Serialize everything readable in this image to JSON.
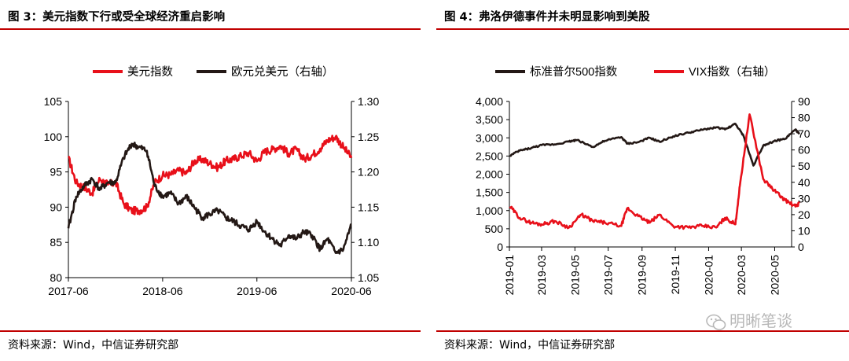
{
  "left": {
    "title": "图 3：美元指数下行或受全球经济重启影响",
    "source": "资料来源：Wind，中信证券研究部",
    "chart_data": {
      "type": "line",
      "x_tick_labels": [
        "2017-06",
        "2018-06",
        "2019-06",
        "2020-06"
      ],
      "x_range": [
        "2017-06",
        "2020-06"
      ],
      "y_left": {
        "range": [
          80,
          105
        ],
        "tick_labels": [
          "105",
          "100",
          "95",
          "90",
          "85",
          "80"
        ]
      },
      "y_right": {
        "range": [
          1.05,
          1.3
        ],
        "tick_labels": [
          "1.30",
          "1.25",
          "1.20",
          "1.15",
          "1.10",
          "1.05"
        ]
      },
      "legend": {
        "position": "top",
        "items": [
          {
            "label": "美元指数",
            "color": "#e8101a"
          },
          {
            "label": "欧元兑美元（右轴）",
            "color": "#231815"
          }
        ]
      },
      "series": [
        {
          "name": "美元指数",
          "axis": "left",
          "color": "#e8101a",
          "x": [
            "2017-06",
            "2017-07",
            "2017-08",
            "2017-09",
            "2017-10",
            "2017-11",
            "2017-12",
            "2018-01",
            "2018-02",
            "2018-03",
            "2018-04",
            "2018-05",
            "2018-06",
            "2018-07",
            "2018-08",
            "2018-09",
            "2018-10",
            "2018-11",
            "2018-12",
            "2019-01",
            "2019-02",
            "2019-03",
            "2019-04",
            "2019-05",
            "2019-06",
            "2019-07",
            "2019-08",
            "2019-09",
            "2019-10",
            "2019-11",
            "2019-12",
            "2020-01",
            "2020-02",
            "2020-03",
            "2020-04",
            "2020-05",
            "2020-06"
          ],
          "values": [
            97.0,
            93.5,
            92.8,
            92.0,
            94.0,
            93.2,
            93.5,
            90.5,
            89.5,
            89.5,
            90.0,
            93.5,
            94.5,
            94.6,
            95.2,
            94.8,
            96.5,
            96.8,
            96.2,
            95.6,
            96.6,
            96.8,
            97.3,
            97.7,
            96.5,
            97.9,
            98.2,
            98.7,
            97.6,
            98.2,
            96.8,
            97.4,
            98.3,
            99.5,
            100.0,
            98.5,
            97.0
          ]
        },
        {
          "name": "欧元兑美元（右轴）",
          "axis": "right",
          "color": "#231815",
          "x": [
            "2017-06",
            "2017-07",
            "2017-08",
            "2017-09",
            "2017-10",
            "2017-11",
            "2017-12",
            "2018-01",
            "2018-02",
            "2018-03",
            "2018-04",
            "2018-05",
            "2018-06",
            "2018-07",
            "2018-08",
            "2018-09",
            "2018-10",
            "2018-11",
            "2018-12",
            "2019-01",
            "2019-02",
            "2019-03",
            "2019-04",
            "2019-05",
            "2019-06",
            "2019-07",
            "2019-08",
            "2019-09",
            "2019-10",
            "2019-11",
            "2019-12",
            "2020-01",
            "2020-02",
            "2020-03",
            "2020-04",
            "2020-05",
            "2020-06"
          ],
          "values": [
            1.12,
            1.165,
            1.18,
            1.19,
            1.175,
            1.185,
            1.185,
            1.22,
            1.24,
            1.235,
            1.23,
            1.18,
            1.165,
            1.17,
            1.155,
            1.165,
            1.15,
            1.135,
            1.14,
            1.145,
            1.135,
            1.13,
            1.123,
            1.118,
            1.13,
            1.115,
            1.105,
            1.095,
            1.11,
            1.105,
            1.115,
            1.11,
            1.09,
            1.105,
            1.085,
            1.09,
            1.125
          ]
        }
      ]
    }
  },
  "right": {
    "title": "图 4：弗洛伊德事件并未明显影响到美股",
    "source": "资料来源：Wind，中信证券研究部",
    "chart_data": {
      "type": "line",
      "x_tick_labels": [
        "2019-01",
        "2019-03",
        "2019-05",
        "2019-07",
        "2019-09",
        "2019-11",
        "2020-01",
        "2020-03",
        "2020-05"
      ],
      "x_range": [
        "2019-01",
        "2020-06"
      ],
      "y_left": {
        "range": [
          0,
          4000
        ],
        "tick_labels": [
          "4,000",
          "3,500",
          "3,000",
          "2,500",
          "2,000",
          "1,500",
          "1,000",
          "500",
          "0"
        ]
      },
      "y_right": {
        "range": [
          0,
          90
        ],
        "tick_labels": [
          "90",
          "80",
          "70",
          "60",
          "50",
          "40",
          "30",
          "20",
          "10",
          "0"
        ]
      },
      "legend": {
        "position": "top",
        "items": [
          {
            "label": "标准普尔500指数",
            "color": "#231815"
          },
          {
            "label": "VIX指数（右轴）",
            "color": "#e8101a"
          }
        ]
      },
      "series": [
        {
          "name": "标准普尔500指数",
          "axis": "left",
          "color": "#231815",
          "x": [
            "2019-01-02",
            "2019-01-20",
            "2019-02-10",
            "2019-03-01",
            "2019-03-25",
            "2019-04-20",
            "2019-05-05",
            "2019-06-03",
            "2019-06-25",
            "2019-07-25",
            "2019-08-05",
            "2019-08-25",
            "2019-09-15",
            "2019-10-03",
            "2019-10-28",
            "2019-11-25",
            "2019-12-20",
            "2020-01-15",
            "2020-01-31",
            "2020-02-19",
            "2020-03-05",
            "2020-03-23",
            "2020-04-10",
            "2020-04-30",
            "2020-05-20",
            "2020-06-08",
            "2020-06-15"
          ],
          "values": [
            2510,
            2650,
            2720,
            2800,
            2820,
            2900,
            2940,
            2750,
            2920,
            3020,
            2840,
            2880,
            3000,
            2890,
            3040,
            3140,
            3220,
            3290,
            3230,
            3386,
            3050,
            2237,
            2790,
            2910,
            2970,
            3230,
            3100
          ]
        },
        {
          "name": "VIX指数（右轴）",
          "axis": "right",
          "color": "#e8101a",
          "x": [
            "2019-01-02",
            "2019-01-20",
            "2019-02-10",
            "2019-03-01",
            "2019-03-25",
            "2019-04-20",
            "2019-05-13",
            "2019-06-03",
            "2019-06-25",
            "2019-07-25",
            "2019-08-05",
            "2019-08-25",
            "2019-09-15",
            "2019-10-03",
            "2019-10-28",
            "2019-11-25",
            "2019-12-20",
            "2020-01-15",
            "2020-01-31",
            "2020-02-19",
            "2020-02-28",
            "2020-03-16",
            "2020-04-10",
            "2020-04-30",
            "2020-05-20",
            "2020-06-08",
            "2020-06-15"
          ],
          "values": [
            25,
            18,
            15,
            14,
            16,
            12,
            20,
            16,
            15,
            13,
            24,
            19,
            15,
            20,
            13,
            12,
            13,
            12,
            18,
            14,
            40,
            82,
            42,
            35,
            29,
            25,
            27
          ]
        }
      ]
    }
  },
  "watermark": {
    "text": "明晰笔谈"
  }
}
